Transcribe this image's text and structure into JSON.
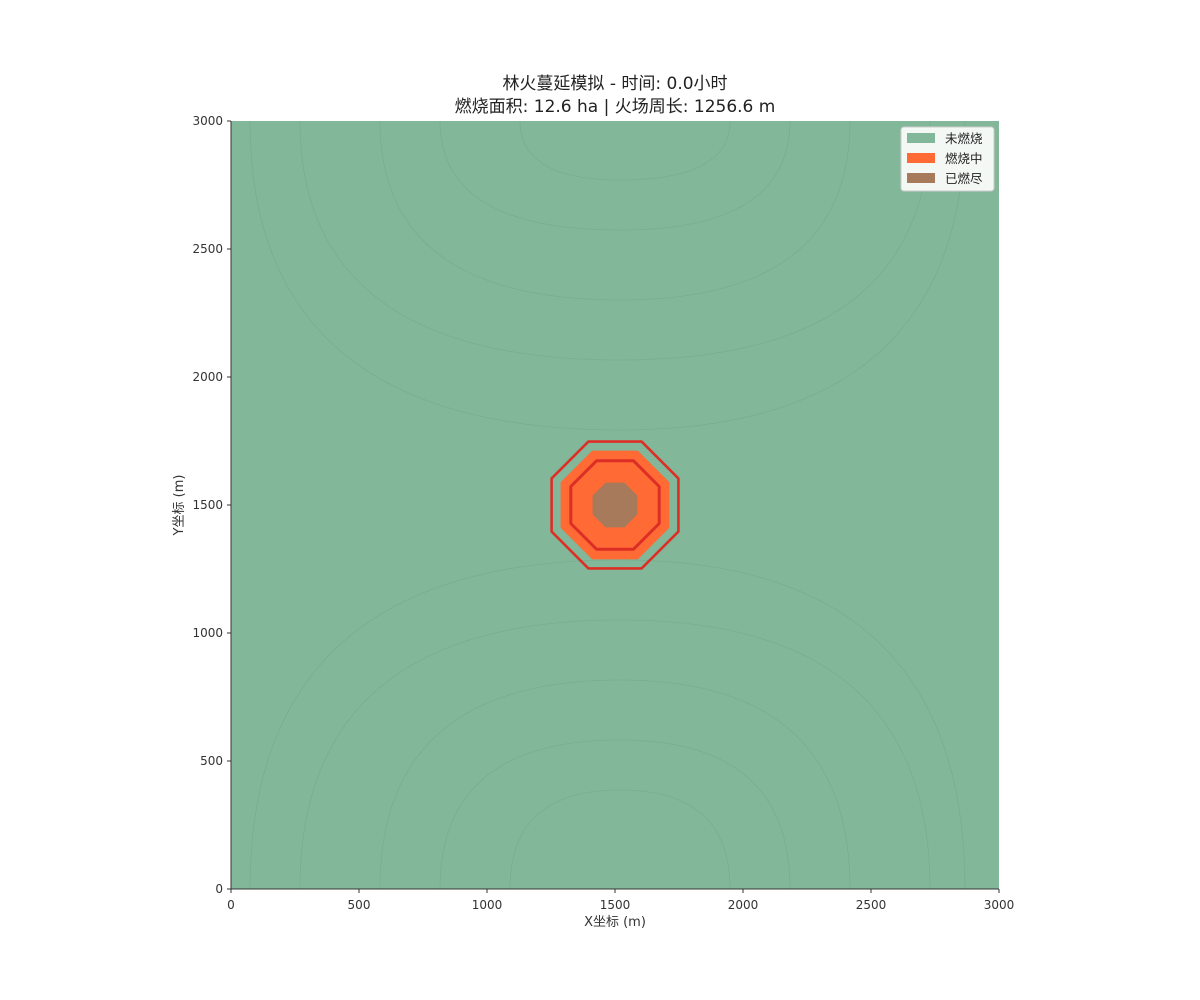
{
  "chart_data": {
    "type": "heatmap",
    "title_line1": "林火蔓延模拟 - 时间: 0.0小时",
    "title_line2": "燃烧面积: 12.6 ha | 火场周长: 1256.6 m",
    "xlabel": "X坐标 (m)",
    "ylabel": "Y坐标 (m)",
    "xlim": [
      0,
      3000
    ],
    "ylim": [
      0,
      3000
    ],
    "xticks": [
      0,
      500,
      1000,
      1500,
      2000,
      2500,
      3000
    ],
    "yticks": [
      0,
      500,
      1000,
      1500,
      2000,
      2500,
      3000
    ],
    "legend_position": "top-right",
    "legend": [
      {
        "label": "未燃烧",
        "color": "#82b899"
      },
      {
        "label": "燃烧中",
        "color": "#ff6a35"
      },
      {
        "label": "已燃尽",
        "color": "#a67a5b"
      }
    ],
    "fire_center": [
      1500,
      1500
    ],
    "burned_region_size": 175,
    "burning_region_size": 425,
    "front_outer_size": 495,
    "front_inner_size": 345,
    "front_color": "#dd2e26",
    "background_color": "#82b899"
  }
}
